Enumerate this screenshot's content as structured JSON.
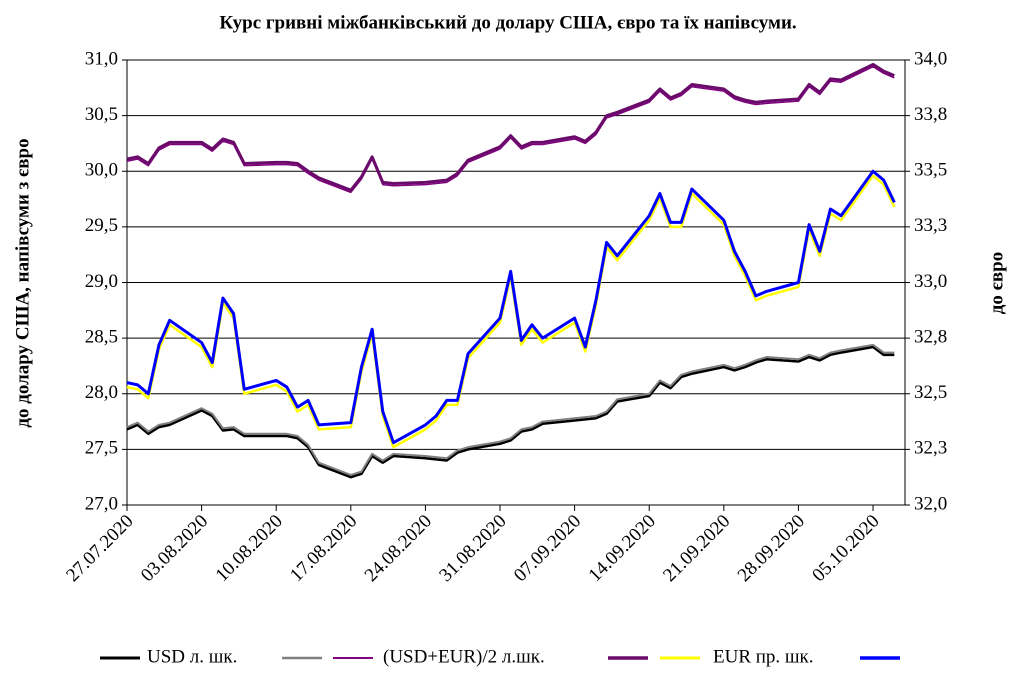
{
  "chart_data": {
    "type": "line",
    "title": "Курс гривні міжбанківський до долару США, євро та їх напівсуми.",
    "ylabel": "до долару США, напівсуми з євро",
    "y2label": "до євро",
    "x": [
      "27.07.2020",
      "28.07.2020",
      "29.07.2020",
      "30.07.2020",
      "31.07.2020",
      "03.08.2020",
      "04.08.2020",
      "05.08.2020",
      "06.08.2020",
      "07.08.2020",
      "10.08.2020",
      "11.08.2020",
      "12.08.2020",
      "13.08.2020",
      "14.08.2020",
      "17.08.2020",
      "18.08.2020",
      "19.08.2020",
      "20.08.2020",
      "21.08.2020",
      "24.08.2020",
      "25.08.2020",
      "26.08.2020",
      "27.08.2020",
      "28.08.2020",
      "31.08.2020",
      "01.09.2020",
      "02.09.2020",
      "03.09.2020",
      "04.09.2020",
      "07.09.2020",
      "08.09.2020",
      "09.09.2020",
      "10.09.2020",
      "11.09.2020",
      "14.09.2020",
      "15.09.2020",
      "16.09.2020",
      "17.09.2020",
      "18.09.2020",
      "21.09.2020",
      "22.09.2020",
      "23.09.2020",
      "24.09.2020",
      "25.09.2020",
      "28.09.2020",
      "29.09.2020",
      "30.09.2020",
      "01.10.2020",
      "02.10.2020",
      "05.10.2020",
      "06.10.2020",
      "07.10.2020"
    ],
    "xlim": [
      "27.07.2020",
      "08.10.2020"
    ],
    "xticks": [
      "27.07.2020",
      "03.08.2020",
      "10.08.2020",
      "17.08.2020",
      "24.08.2020",
      "31.08.2020",
      "07.09.2020",
      "14.09.2020",
      "21.09.2020",
      "28.09.2020",
      "05.10.2020"
    ],
    "ylim": [
      27,
      31
    ],
    "yticks": [
      {
        "value": 27,
        "label": "27,0"
      },
      {
        "value": 27.5,
        "label": "27,5"
      },
      {
        "value": 28,
        "label": "28,0"
      },
      {
        "value": 28.5,
        "label": "28,5"
      },
      {
        "value": 29,
        "label": "29,0"
      },
      {
        "value": 29.5,
        "label": "29,5"
      },
      {
        "value": 30,
        "label": "30,0"
      },
      {
        "value": 30.5,
        "label": "30,5"
      },
      {
        "value": 31,
        "label": "31,0"
      }
    ],
    "y2lim": [
      32,
      34
    ],
    "y2ticks": [
      {
        "value": 32,
        "label": "32,0"
      },
      {
        "value": 32.25,
        "label": "32,3"
      },
      {
        "value": 32.5,
        "label": "32,5"
      },
      {
        "value": 32.75,
        "label": "32,8"
      },
      {
        "value": 33,
        "label": "33,0"
      },
      {
        "value": 33.25,
        "label": "33,3"
      },
      {
        "value": 33.5,
        "label": "33,5"
      },
      {
        "value": 33.75,
        "label": "33,8"
      },
      {
        "value": 34,
        "label": "34,0"
      }
    ],
    "series": [
      {
        "name": "USD л. шк.",
        "color": "#000000",
        "values": [
          27.68,
          27.72,
          27.64,
          27.7,
          27.72,
          27.85,
          27.8,
          27.67,
          27.68,
          27.62,
          27.62,
          27.62,
          27.6,
          27.52,
          27.36,
          27.25,
          27.28,
          27.44,
          27.38,
          27.44,
          27.42,
          27.41,
          27.4,
          27.47,
          27.5,
          27.55,
          27.58,
          27.66,
          27.68,
          27.73,
          27.76,
          27.77,
          27.78,
          27.82,
          27.93,
          27.98,
          28.1,
          28.05,
          28.15,
          28.18,
          28.24,
          28.21,
          28.24,
          28.28,
          28.31,
          28.29,
          28.33,
          28.3,
          28.35,
          28.37,
          28.42,
          28.35,
          28.35
        ]
      },
      {
        "color": "#808080",
        "values": [
          27.7,
          27.74,
          27.66,
          27.72,
          27.74,
          27.87,
          27.82,
          27.69,
          27.7,
          27.64,
          27.64,
          27.64,
          27.62,
          27.54,
          27.38,
          27.27,
          27.3,
          27.46,
          27.4,
          27.46,
          27.44,
          27.43,
          27.42,
          27.49,
          27.52,
          27.57,
          27.6,
          27.68,
          27.7,
          27.75,
          27.78,
          27.79,
          27.8,
          27.84,
          27.95,
          28.0,
          28.12,
          28.07,
          28.17,
          28.2,
          28.26,
          28.23,
          28.26,
          28.3,
          28.33,
          28.31,
          28.35,
          28.32,
          28.37,
          28.39,
          28.44,
          28.37,
          28.37
        ]
      },
      {
        "name": "(USD+EUR)/2 л.шк.",
        "color": "#800080",
        "values": [
          30.09,
          30.11,
          30.05,
          30.19,
          30.24,
          30.24,
          30.18,
          30.27,
          30.24,
          30.05,
          30.06,
          30.06,
          30.05,
          29.98,
          29.92,
          29.81,
          29.93,
          30.11,
          29.88,
          29.87,
          29.88,
          29.89,
          29.9,
          29.96,
          30.08,
          30.2,
          30.3,
          30.2,
          30.24,
          30.24,
          30.29,
          30.25,
          30.33,
          30.48,
          30.51,
          30.62,
          30.72,
          30.64,
          30.68,
          30.76,
          30.72,
          30.65,
          30.62,
          30.6,
          30.61,
          30.63,
          30.76,
          30.69,
          30.81,
          30.8,
          30.94,
          30.88,
          30.84
        ]
      },
      {
        "color": "#6a0a6a",
        "values": [
          30.11,
          30.13,
          30.07,
          30.21,
          30.26,
          30.26,
          30.2,
          30.29,
          30.26,
          30.07,
          30.08,
          30.08,
          30.07,
          30.0,
          29.94,
          29.83,
          29.95,
          30.13,
          29.9,
          29.89,
          29.9,
          29.91,
          29.92,
          29.98,
          30.1,
          30.22,
          30.32,
          30.22,
          30.26,
          30.26,
          30.31,
          30.27,
          30.35,
          30.5,
          30.53,
          30.64,
          30.74,
          30.66,
          30.7,
          30.78,
          30.74,
          30.67,
          30.64,
          30.62,
          30.63,
          30.65,
          30.78,
          30.71,
          30.83,
          30.82,
          30.96,
          30.9,
          30.86
        ]
      },
      {
        "name": "EUR пр. шк.",
        "color": "#ffff00",
        "axis": "y2",
        "values": [
          32.53,
          32.52,
          32.48,
          32.7,
          32.81,
          32.71,
          32.62,
          32.91,
          32.84,
          32.5,
          32.54,
          32.51,
          32.42,
          32.45,
          32.34,
          32.35,
          32.6,
          32.77,
          32.4,
          32.26,
          32.34,
          32.38,
          32.45,
          32.45,
          32.66,
          32.82,
          33.03,
          32.72,
          32.79,
          32.73,
          32.82,
          32.69,
          32.9,
          33.16,
          33.1,
          33.28,
          33.38,
          33.25,
          33.25,
          33.4,
          33.26,
          33.12,
          33.03,
          32.92,
          32.94,
          32.98,
          33.24,
          33.12,
          33.31,
          33.28,
          33.48,
          33.44,
          33.34
        ]
      },
      {
        "color": "#0000ff",
        "axis": "y2",
        "values": [
          32.55,
          32.54,
          32.5,
          32.72,
          32.83,
          32.73,
          32.64,
          32.93,
          32.86,
          32.52,
          32.56,
          32.53,
          32.44,
          32.47,
          32.36,
          32.37,
          32.62,
          32.79,
          32.42,
          32.28,
          32.36,
          32.4,
          32.47,
          32.47,
          32.68,
          32.84,
          33.05,
          32.74,
          32.81,
          32.75,
          32.84,
          32.71,
          32.92,
          33.18,
          33.12,
          33.3,
          33.4,
          33.27,
          33.27,
          33.42,
          33.28,
          33.14,
          33.05,
          32.94,
          32.96,
          33.0,
          33.26,
          33.14,
          33.33,
          33.3,
          33.5,
          33.46,
          33.36
        ]
      }
    ],
    "grid": true
  }
}
